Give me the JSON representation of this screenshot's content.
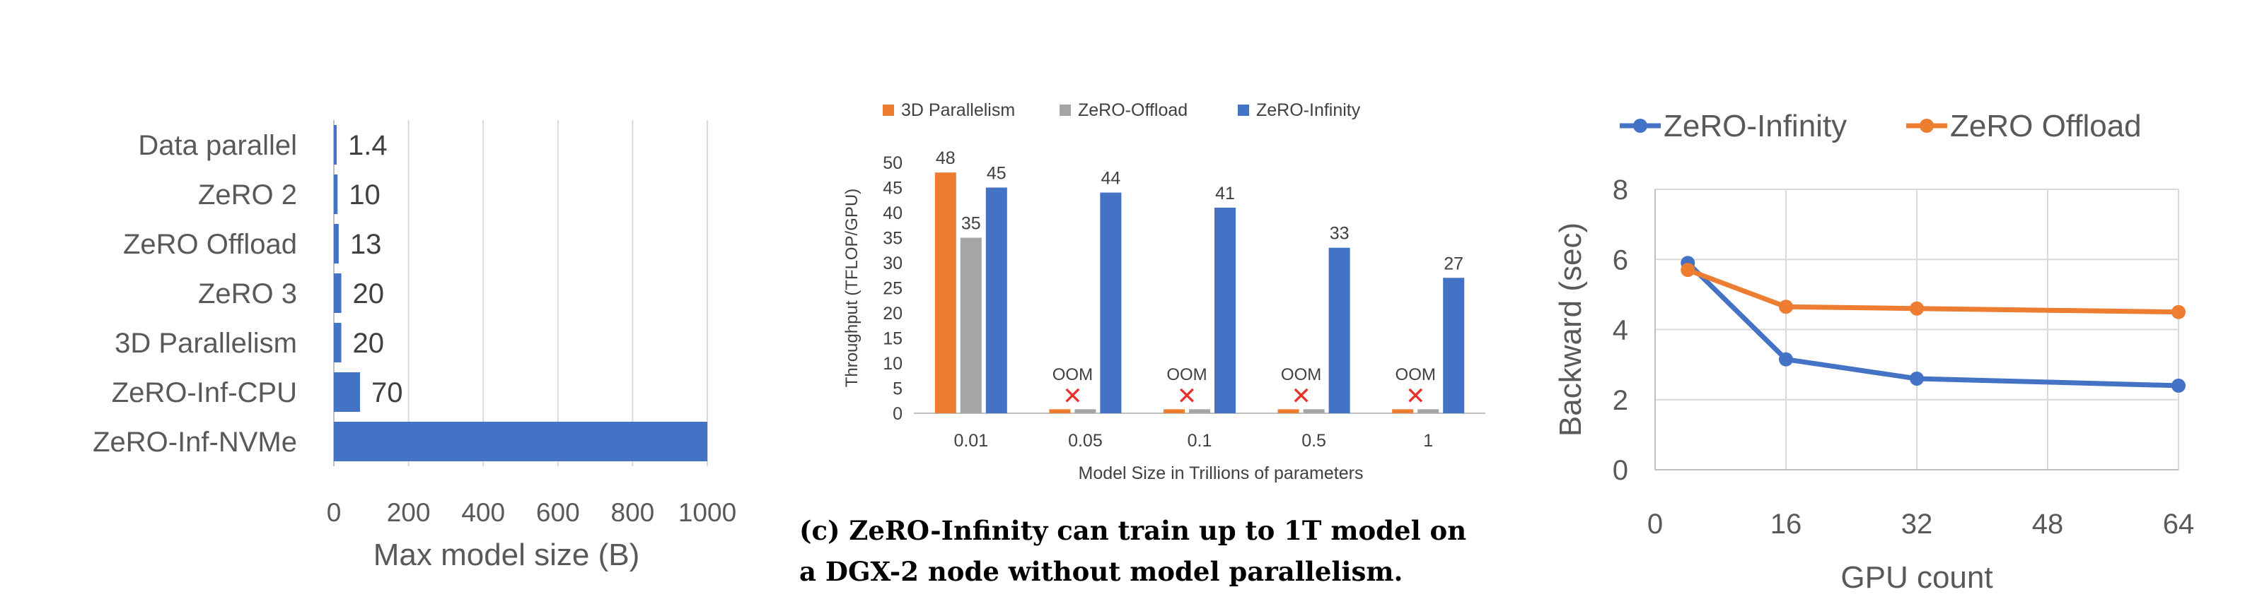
{
  "chart_data": [
    {
      "type": "bar",
      "orientation": "horizontal",
      "categories": [
        "Data parallel",
        "ZeRO 2",
        "ZeRO Offload",
        "ZeRO 3",
        "3D Parallelism",
        "ZeRO-Inf-CPU",
        "ZeRO-Inf-NVMe"
      ],
      "values": [
        1.4,
        10,
        13,
        20,
        20,
        70,
        1000
      ],
      "data_labels": [
        "1.4",
        "10",
        "13",
        "20",
        "20",
        "70",
        ""
      ],
      "xlabel": "Max model size (B)",
      "ylabel": "",
      "xlim": [
        0,
        1000
      ],
      "xticks": [
        "0",
        "200",
        "400",
        "600",
        "800",
        "1000"
      ],
      "tick_values": [
        0,
        200,
        400,
        600,
        800,
        1000
      ],
      "grid": true,
      "color": "#4472c4"
    },
    {
      "type": "bar",
      "categories": [
        "0.01",
        "0.05",
        "0.1",
        "0.5",
        "1"
      ],
      "series": [
        {
          "name": "3D Parallelism",
          "values": [
            48,
            0.8,
            0.8,
            0.8,
            0.8
          ],
          "labels": [
            "48",
            "",
            "",
            "",
            ""
          ],
          "color": "#ed7d31"
        },
        {
          "name": "ZeRO-Offload",
          "values": [
            35,
            0.8,
            0.8,
            0.8,
            0.8
          ],
          "labels": [
            "35",
            "",
            "",
            "",
            ""
          ],
          "color": "#a5a5a5"
        },
        {
          "name": "ZeRO-Infinity",
          "values": [
            45,
            44,
            41,
            33,
            27
          ],
          "labels": [
            "45",
            "44",
            "41",
            "33",
            "27"
          ],
          "color": "#4472c4"
        }
      ],
      "oom_label": "OOM",
      "oom_marker": "✕",
      "oom_categories": [
        "0.05",
        "0.1",
        "0.5",
        "1"
      ],
      "xlabel": "Model Size in Trillions of parameters",
      "ylabel": "Throughput (TFLOP/GPU)",
      "ylim": [
        0,
        50
      ],
      "yticks": [
        "0",
        "5",
        "10",
        "15",
        "20",
        "25",
        "30",
        "35",
        "40",
        "45",
        "50"
      ],
      "tick_values": [
        0,
        5,
        10,
        15,
        20,
        25,
        30,
        35,
        40,
        45,
        50
      ],
      "legend": "top",
      "grid": false,
      "oom_color": "#e8312a"
    },
    {
      "type": "line",
      "x": [
        4,
        16,
        32,
        64
      ],
      "series": [
        {
          "name": "ZeRO-Infinity",
          "values": [
            5.9,
            3.15,
            2.6,
            2.4
          ],
          "color": "#4472c4"
        },
        {
          "name": "ZeRO Offload",
          "values": [
            5.7,
            4.65,
            4.6,
            4.5
          ],
          "color": "#ed7d31"
        }
      ],
      "xlabel": "GPU count",
      "ylabel": "Backward (sec)",
      "xlim": [
        0,
        64
      ],
      "ylim": [
        0,
        8
      ],
      "xticks": [
        "0",
        "16",
        "32",
        "48",
        "64"
      ],
      "x_tick_values": [
        0,
        16,
        32,
        48,
        64
      ],
      "yticks": [
        "0",
        "2",
        "4",
        "6",
        "8"
      ],
      "y_tick_values": [
        0,
        2,
        4,
        6,
        8
      ],
      "legend": "top",
      "grid": true
    }
  ],
  "caption": {
    "line1": "(c) ZeRO-Infinity can train up to 1T model on",
    "line2": "a DGX-2 node without model parallelism."
  }
}
